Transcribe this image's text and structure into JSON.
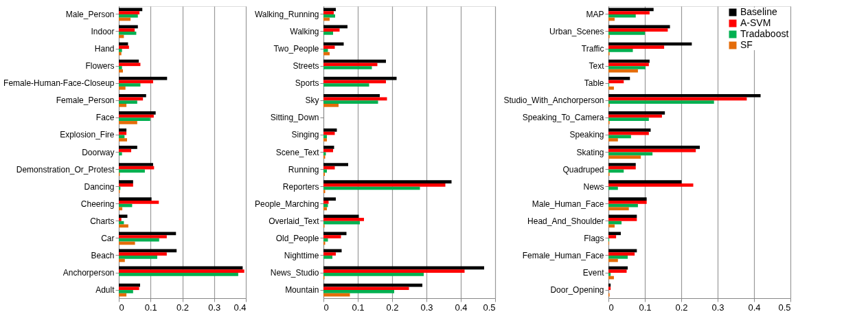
{
  "chart_data": [
    {
      "type": "bar",
      "orientation": "horizontal",
      "categories": [
        "Male_Person",
        "Indoor",
        "Hand",
        "Flowers",
        "Female-Human-Face-Closeup",
        "Female_Person",
        "Face",
        "Explosion_Fire",
        "Doorway",
        "Demonstration_Or_Protest",
        "Dancing",
        "Cheering",
        "Charts",
        "Car",
        "Beach",
        "Anchorperson",
        "Adult"
      ],
      "series": [
        {
          "color": "#000000",
          "values": [
            0.074,
            0.06,
            0.029,
            0.063,
            0.152,
            0.086,
            0.116,
            0.024,
            0.058,
            0.108,
            0.045,
            0.103,
            0.027,
            0.18,
            0.182,
            0.39,
            0.067
          ]
        },
        {
          "color": "#ff0000",
          "values": [
            0.065,
            0.05,
            0.032,
            0.068,
            0.108,
            0.076,
            0.11,
            0.024,
            0.039,
            0.111,
            0.045,
            0.126,
            0.008,
            0.151,
            0.151,
            0.395,
            0.064
          ]
        },
        {
          "color": "#00b050",
          "values": [
            0.06,
            0.055,
            0.01,
            0.01,
            0.068,
            0.058,
            0.099,
            0.018,
            0.01,
            0.082,
            0.005,
            0.042,
            0.016,
            0.127,
            0.121,
            0.376,
            0.045
          ]
        },
        {
          "color": "#e46c0a",
          "values": [
            0.037,
            0.016,
            0.008,
            0.013,
            0.021,
            0.024,
            0.058,
            0.026,
            0,
            0.003,
            0.003,
            0.011,
            0.03,
            0.051,
            0.019,
            0,
            0.024
          ]
        }
      ],
      "xlim": [
        0,
        0.4
      ],
      "xticks": [
        0,
        0.1,
        0.2,
        0.3,
        0.4
      ],
      "grid": "x",
      "legend": false
    },
    {
      "type": "bar",
      "orientation": "horizontal",
      "categories": [
        "Walking_Running",
        "Walking",
        "Two_People",
        "Streets",
        "Sports",
        "Sky",
        "Sitting_Down",
        "Singing",
        "Scene_Text",
        "Running",
        "Reporters",
        "People_Marching",
        "Overlaid_Text",
        "Old_People",
        "Nighttime",
        "News_Studio",
        "Mountain"
      ],
      "series": [
        {
          "color": "#000000",
          "values": [
            0.036,
            0.07,
            0.059,
            0.182,
            0.213,
            0.164,
            0,
            0.039,
            0.031,
            0.072,
            0.373,
            0.036,
            0.103,
            0.067,
            0.053,
            0.468,
            0.288
          ]
        },
        {
          "color": "#ff0000",
          "values": [
            0.03,
            0.047,
            0.033,
            0.157,
            0.182,
            0.185,
            0,
            0.033,
            0.028,
            0.033,
            0.355,
            0.015,
            0.118,
            0.051,
            0.036,
            0.411,
            0.249
          ]
        },
        {
          "color": "#00b050",
          "values": [
            0.034,
            0.028,
            0.013,
            0.141,
            0.133,
            0.159,
            0,
            0.01,
            0.007,
            0.01,
            0.281,
            0.013,
            0.106,
            0.013,
            0.026,
            0.292,
            0.206
          ]
        },
        {
          "color": "#e46c0a",
          "values": [
            0.018,
            0,
            0.018,
            0,
            0,
            0.044,
            0,
            0.01,
            0.005,
            0.004,
            0.005,
            0.01,
            0.003,
            0.005,
            0,
            0.003,
            0.077
          ]
        }
      ],
      "xlim": [
        0,
        0.5
      ],
      "xticks": [
        0,
        0.1,
        0.2,
        0.3,
        0.4,
        0.5
      ],
      "grid": "x",
      "legend": false
    },
    {
      "type": "bar",
      "orientation": "horizontal",
      "categories": [
        "MAP",
        "Urban_Scenes",
        "Traffic",
        "Text",
        "Table",
        "Studio_With_Anchorperson",
        "Speaking_To_Camera",
        "Speaking",
        "Skating",
        "Quadruped",
        "News",
        "Male_Human_Face",
        "Head_And_Shoulder",
        "Flags",
        "Female_Human_Face",
        "Event",
        "Door_Opening"
      ],
      "series": [
        {
          "name": "Baseline",
          "color": "#000000",
          "values": [
            0.124,
            0.169,
            0.229,
            0.113,
            0.059,
            0.418,
            0.155,
            0.116,
            0.251,
            0.075,
            0.201,
            0.105,
            0.078,
            0.034,
            0.078,
            0.053,
            0.006
          ]
        },
        {
          "name": "A-SVM",
          "color": "#ff0000",
          "values": [
            0.113,
            0.163,
            0.153,
            0.111,
            0.042,
            0.38,
            0.147,
            0.111,
            0.24,
            0.075,
            0.233,
            0.105,
            0.078,
            0.021,
            0.072,
            0.05,
            0.006
          ]
        },
        {
          "name": "Tradaboost",
          "color": "#00b050",
          "values": [
            0.075,
            0.1,
            0.067,
            0.102,
            0.002,
            0.29,
            0.111,
            0.062,
            0.121,
            0.042,
            0.026,
            0.081,
            0.036,
            0.002,
            0.053,
            0.006,
            0
          ]
        },
        {
          "name": "SF",
          "color": "#e46c0a",
          "values": [
            0.017,
            0.003,
            0.003,
            0.081,
            0.015,
            0.003,
            0.003,
            0.026,
            0.089,
            0.003,
            0,
            0.056,
            0.017,
            0.002,
            0.026,
            0.015,
            0.003
          ]
        }
      ],
      "xlim": [
        0,
        0.5
      ],
      "xticks": [
        0,
        0.1,
        0.2,
        0.3,
        0.4,
        0.5
      ],
      "grid": "x",
      "legend": "top right"
    }
  ]
}
